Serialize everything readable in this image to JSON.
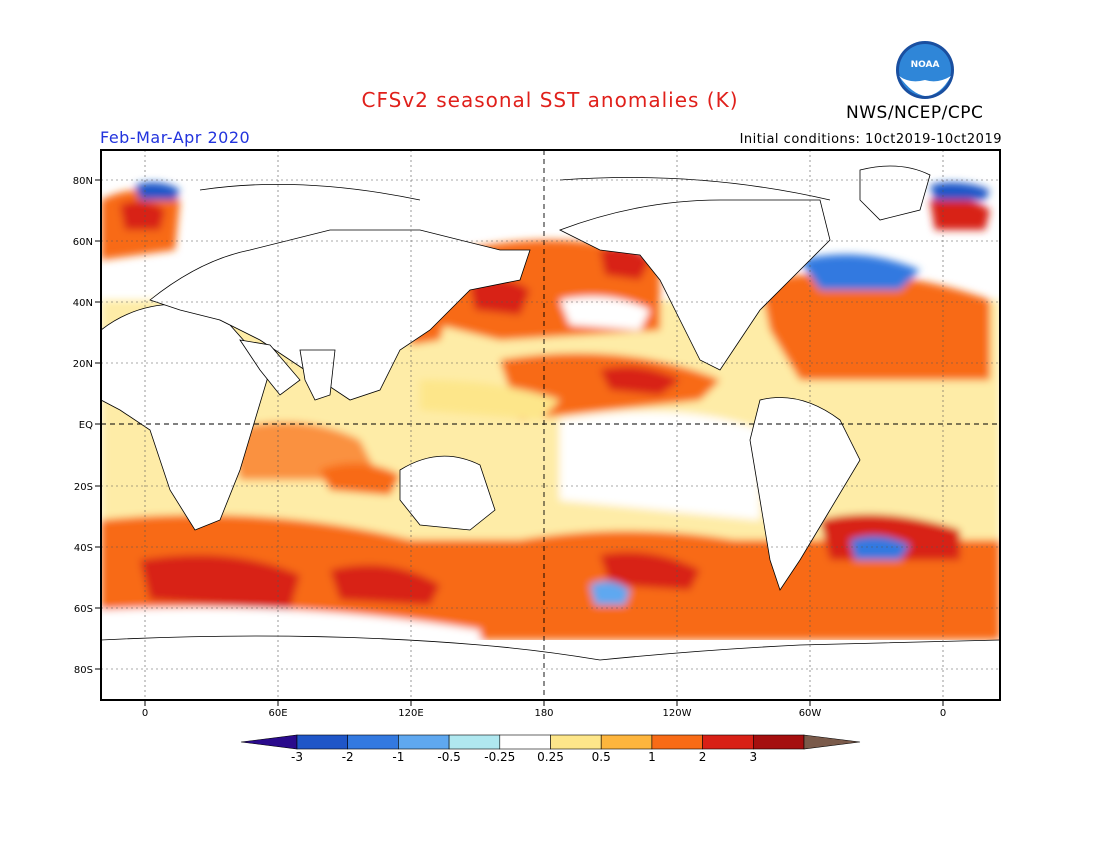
{
  "header": {
    "title": "CFSv2 seasonal SST anomalies (K)",
    "org": "NWS/NCEP/CPC",
    "season": "Feb-Mar-Apr 2020",
    "initial_conditions": "Initial conditions: 10ct2019-10ct2019",
    "logo_text": "NOAA"
  },
  "map": {
    "lat_labels": [
      "80N",
      "60N",
      "40N",
      "20N",
      "EQ",
      "20S",
      "40S",
      "60S",
      "80S"
    ],
    "lon_labels": [
      "0",
      "60E",
      "120E",
      "180",
      "120W",
      "60W",
      "0"
    ]
  },
  "colorbar": {
    "labels": [
      "-3",
      "-2",
      "-1",
      "-0.5",
      "-0.25",
      "0.25",
      "0.5",
      "1",
      "2",
      "3"
    ],
    "colors": [
      "#2a0a8c",
      "#1f56c8",
      "#3379e0",
      "#5fa8f0",
      "#b0e8f0",
      "#ffffff",
      "#fde68a",
      "#fdb53d",
      "#f86b16",
      "#d82016",
      "#a50f0f",
      "#7a5a4a"
    ]
  },
  "palette": {
    "title": "#e0201b",
    "season": "#2233dd"
  }
}
